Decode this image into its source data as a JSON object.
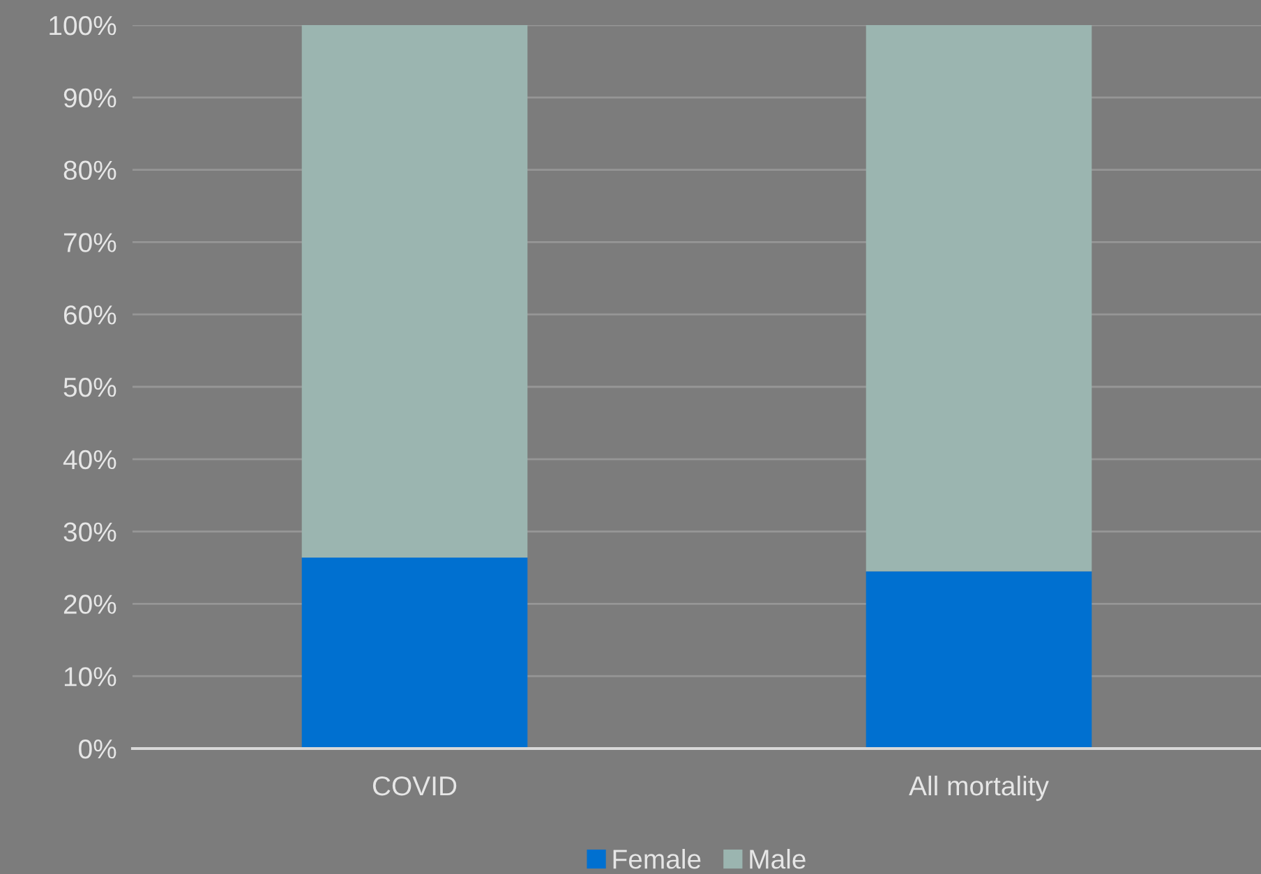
{
  "chart_data": {
    "type": "bar",
    "stacked": true,
    "categories": [
      "COVID",
      "All mortality"
    ],
    "series": [
      {
        "name": "Female",
        "color": "#0070d0",
        "values": [
          26.4,
          24.5
        ]
      },
      {
        "name": "Male",
        "color": "#9bb5b0",
        "values": [
          73.6,
          75.5
        ]
      }
    ],
    "ylim": [
      0,
      100
    ],
    "yticks": [
      {
        "value": 0,
        "label": "0%"
      },
      {
        "value": 10,
        "label": "10%"
      },
      {
        "value": 20,
        "label": "20%"
      },
      {
        "value": 30,
        "label": "30%"
      },
      {
        "value": 40,
        "label": "40%"
      },
      {
        "value": 50,
        "label": "50%"
      },
      {
        "value": 60,
        "label": "60%"
      },
      {
        "value": 70,
        "label": "70%"
      },
      {
        "value": 80,
        "label": "80%"
      },
      {
        "value": 90,
        "label": "90%"
      },
      {
        "value": 100,
        "label": "100%"
      }
    ],
    "grid": "y",
    "legend": "bottom"
  }
}
